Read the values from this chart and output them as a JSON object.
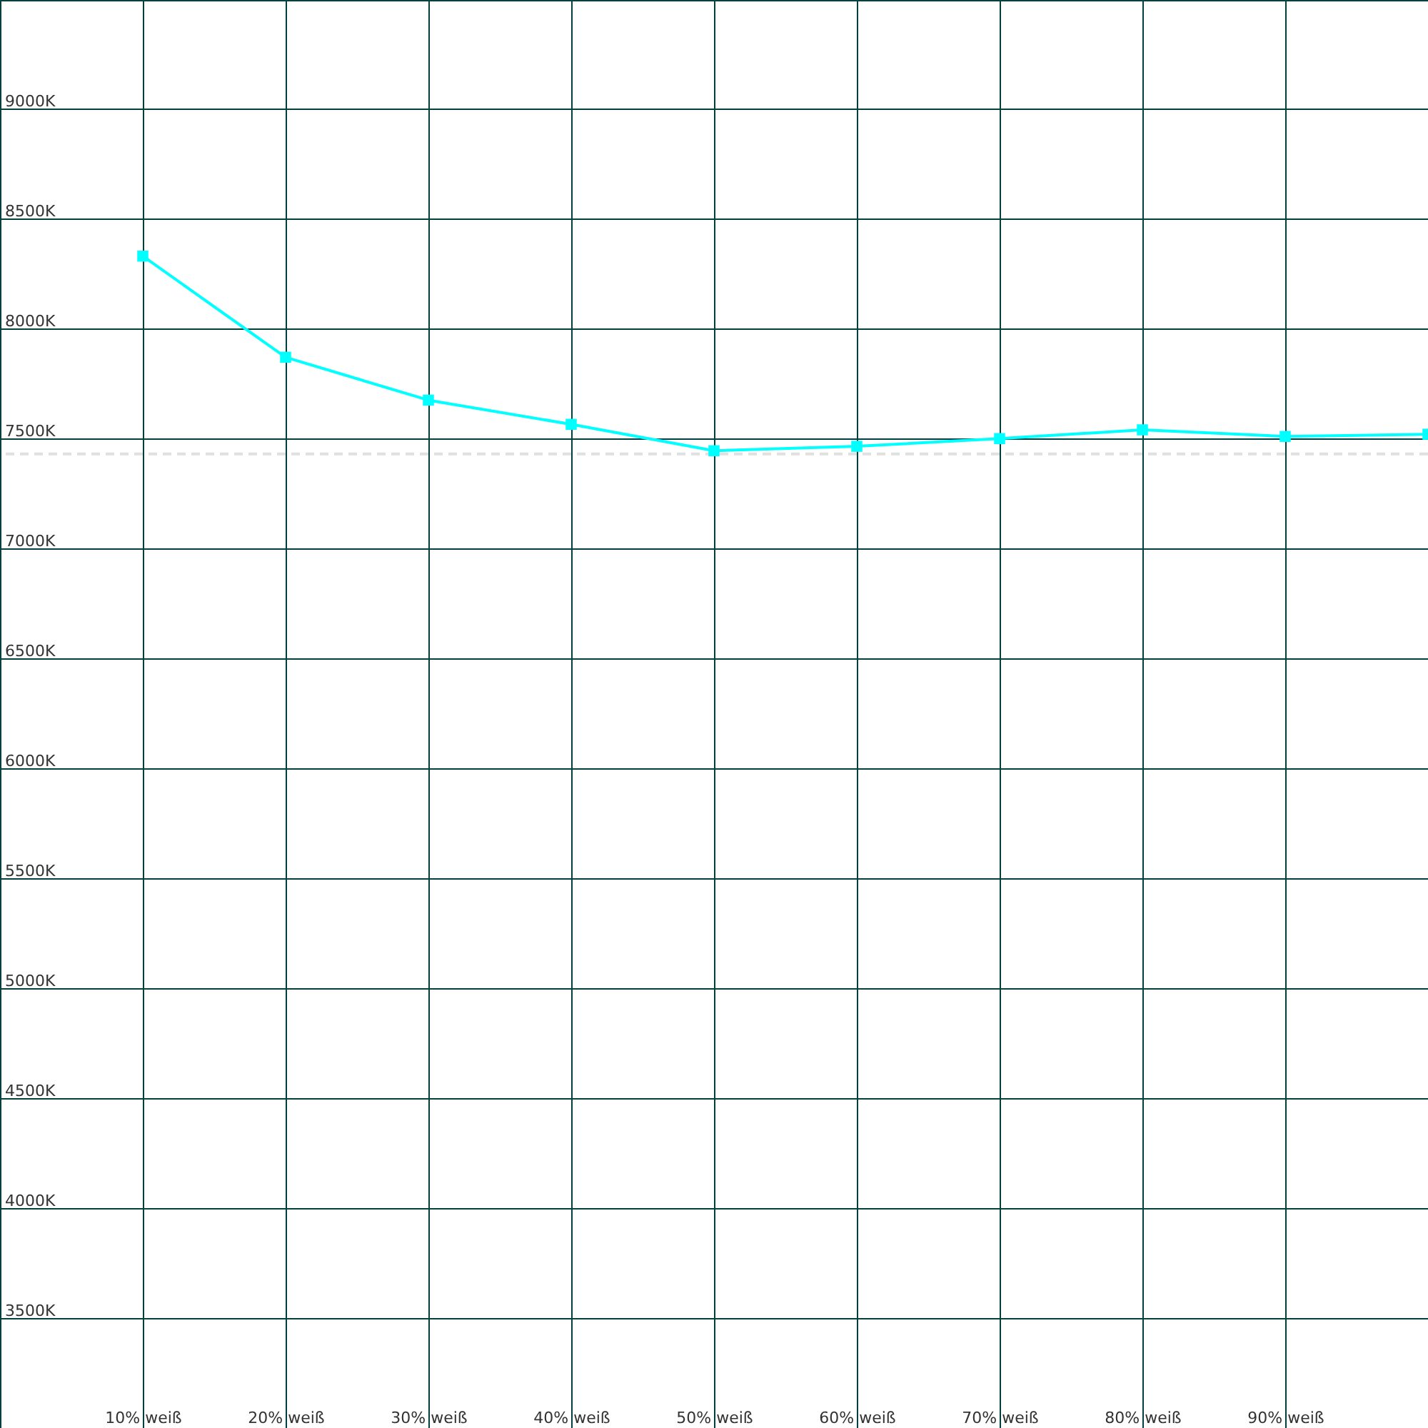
{
  "chart_data": {
    "type": "line",
    "x": [
      10,
      20,
      30,
      40,
      50,
      60,
      70,
      80,
      90,
      100
    ],
    "series": [
      {
        "color": "#00ffff",
        "values": [
          8330,
          7870,
          7675,
          7565,
          7445,
          7465,
          7500,
          7540,
          7510,
          7520
        ]
      }
    ],
    "xlim": [
      0,
      100
    ],
    "xticks": [
      {
        "value": 10,
        "label": "10% weiß"
      },
      {
        "value": 20,
        "label": "20% weiß"
      },
      {
        "value": 30,
        "label": "30% weiß"
      },
      {
        "value": 40,
        "label": "40% weiß"
      },
      {
        "value": 50,
        "label": "50% weiß"
      },
      {
        "value": 60,
        "label": "60% weiß"
      },
      {
        "value": 70,
        "label": "70% weiß"
      },
      {
        "value": 80,
        "label": "80% weiß"
      },
      {
        "value": 90,
        "label": "90% weiß"
      }
    ],
    "ylim": [
      3000,
      9495
    ],
    "yticks": [
      {
        "value": 3500,
        "label": "3500K"
      },
      {
        "value": 4000,
        "label": "4000K"
      },
      {
        "value": 4500,
        "label": "4500K"
      },
      {
        "value": 5000,
        "label": "5000K"
      },
      {
        "value": 5500,
        "label": "5500K"
      },
      {
        "value": 6000,
        "label": "6000K"
      },
      {
        "value": 6500,
        "label": "6500K"
      },
      {
        "value": 7000,
        "label": "7000K"
      },
      {
        "value": 7500,
        "label": "7500K"
      },
      {
        "value": 8000,
        "label": "8000K"
      },
      {
        "value": 8500,
        "label": "8500K"
      },
      {
        "value": 9000,
        "label": "9000K"
      }
    ],
    "ref_lines": [
      {
        "axis": "y",
        "value": 7430,
        "color": "#e0e0e0",
        "line_style": "dashed"
      }
    ],
    "grid": true,
    "marker": "square",
    "line_style": "solid"
  }
}
